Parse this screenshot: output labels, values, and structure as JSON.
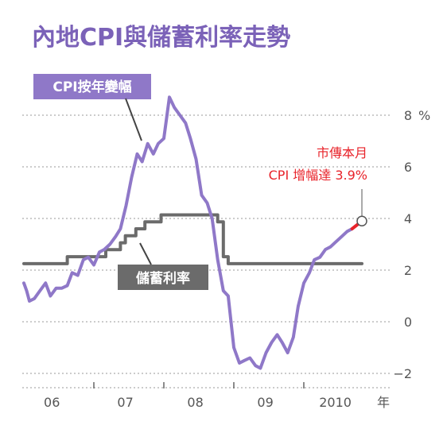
{
  "title": "內地CPI與儲蓄利率走勢",
  "colors": {
    "cpi": "#8f78c8",
    "rate": "#6b6b6b",
    "annotation": "#e8232a",
    "grid": "#9a9a9a",
    "title": "#7b62b8"
  },
  "annotation": {
    "line1": "市傳本月",
    "line2": "CPI 增幅達 3.9%"
  },
  "chart_data": {
    "type": "line",
    "title": "內地CPI與儲蓄利率走勢",
    "xlabel": "年",
    "ylabel": "%",
    "x_tick_labels": [
      "06",
      "07",
      "08",
      "09",
      "2010"
    ],
    "x_unit_label": "年",
    "y_ticks": [
      -2,
      0,
      2,
      4,
      6,
      8
    ],
    "y_tick_labels": [
      "−2",
      "0",
      "2",
      "4",
      "6",
      "8"
    ],
    "y_unit_label": "%",
    "ylim": [
      -2,
      8
    ],
    "xlim": [
      2006.0,
      2010.83
    ],
    "grid": true,
    "series": [
      {
        "name": "CPI按年變幅",
        "x": [
          2006.0,
          2006.04,
          2006.08,
          2006.15,
          2006.23,
          2006.31,
          2006.38,
          2006.46,
          2006.54,
          2006.62,
          2006.69,
          2006.77,
          2006.85,
          2006.92,
          2007.0,
          2007.08,
          2007.15,
          2007.23,
          2007.31,
          2007.38,
          2007.46,
          2007.54,
          2007.62,
          2007.69,
          2007.77,
          2007.85,
          2007.92,
          2008.0,
          2008.08,
          2008.15,
          2008.23,
          2008.31,
          2008.38,
          2008.46,
          2008.54,
          2008.62,
          2008.69,
          2008.77,
          2008.85,
          2008.92,
          2009.0,
          2009.08,
          2009.15,
          2009.23,
          2009.31,
          2009.38,
          2009.46,
          2009.54,
          2009.62,
          2009.69,
          2009.77,
          2009.85,
          2009.92,
          2010.0,
          2010.08,
          2010.15,
          2010.23,
          2010.31,
          2010.38,
          2010.46,
          2010.54,
          2010.62,
          2010.69
        ],
        "y": [
          1.5,
          1.2,
          0.8,
          0.9,
          1.2,
          1.5,
          1.0,
          1.3,
          1.3,
          1.4,
          1.9,
          1.8,
          2.4,
          2.5,
          2.2,
          2.7,
          2.8,
          3.0,
          3.3,
          3.6,
          4.5,
          5.6,
          6.5,
          6.2,
          6.9,
          6.5,
          6.9,
          7.1,
          8.7,
          8.3,
          8.0,
          7.7,
          7.1,
          6.3,
          4.9,
          4.6,
          4.0,
          2.4,
          1.2,
          1.0,
          -1.0,
          -1.6,
          -1.5,
          -1.4,
          -1.7,
          -1.8,
          -1.2,
          -0.8,
          -0.5,
          -0.8,
          -1.2,
          -0.6,
          0.6,
          1.5,
          1.9,
          2.4,
          2.5,
          2.8,
          2.9,
          3.1,
          3.3,
          3.5,
          3.6
        ]
      },
      {
        "name": "儲蓄利率",
        "x": [
          2006.0,
          2006.62,
          2006.62,
          2007.17,
          2007.17,
          2007.38,
          2007.38,
          2007.45,
          2007.45,
          2007.6,
          2007.6,
          2007.73,
          2007.73,
          2007.96,
          2007.96,
          2008.77,
          2008.77,
          2008.85,
          2008.85,
          2008.92,
          2008.92,
          2010.83
        ],
        "y": [
          2.25,
          2.25,
          2.52,
          2.52,
          2.79,
          2.79,
          3.06,
          3.06,
          3.33,
          3.33,
          3.6,
          3.6,
          3.87,
          3.87,
          4.14,
          4.14,
          3.87,
          3.87,
          2.52,
          2.52,
          2.25,
          2.25
        ]
      }
    ],
    "annotations": [
      {
        "text": "市傳本月 CPI 增幅達 3.9%",
        "x": 2010.83,
        "y": 3.9
      }
    ],
    "legend": "inline labels (top-left for CPI, center for rate)"
  }
}
